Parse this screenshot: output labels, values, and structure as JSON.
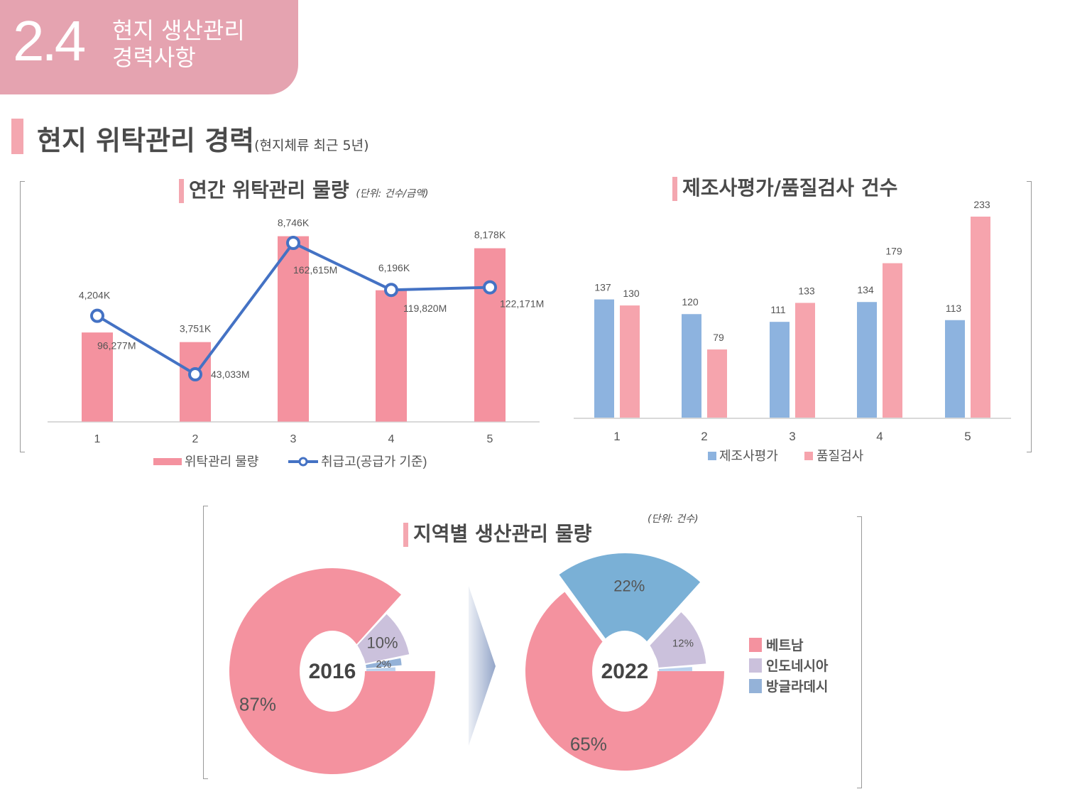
{
  "header": {
    "number": "2.4",
    "title_line1": "현지 생산관리",
    "title_line2": "경력사항"
  },
  "section": {
    "title": "현지 위탁관리 경력",
    "subtitle": "(현지체류 최근 5년)"
  },
  "colors": {
    "pink": "#f4929f",
    "line_blue": "#4472c4",
    "bar_blue": "#8db3df",
    "bar_pink": "#f6a4ad",
    "lavender": "#cbc1dc",
    "mid_blue": "#94b2d8",
    "light_blue": "#b9d0ed",
    "sky_blue": "#7ab0d6"
  },
  "chart_data": [
    {
      "type": "bar",
      "title": "연간 위탁관리 물량",
      "unit": "(단위: 건수/금액)",
      "categories": [
        "1",
        "2",
        "3",
        "4",
        "5"
      ],
      "series": [
        {
          "name": "위탁관리 물량",
          "type": "bar",
          "values": [
            4204,
            3751,
            8746,
            6196,
            8178
          ],
          "labels": [
            "4,204K",
            "3,751K",
            "8,746K",
            "6,196K",
            "8,178K"
          ]
        },
        {
          "name": "취급고(공급가 기준)",
          "type": "line",
          "values": [
            96277,
            43033,
            162615,
            119820,
            122171
          ],
          "labels": [
            "96,277M",
            "43,033M",
            "162,615M",
            "119,820M",
            "122,171M"
          ]
        }
      ],
      "legend": "bottom",
      "grid": false
    },
    {
      "type": "bar",
      "title": "제조사평가/품질검사 건수",
      "categories": [
        "1",
        "2",
        "3",
        "4",
        "5"
      ],
      "series": [
        {
          "name": "제조사평가",
          "values": [
            137,
            120,
            111,
            134,
            113
          ]
        },
        {
          "name": "품질검사",
          "values": [
            130,
            79,
            133,
            179,
            233
          ]
        }
      ],
      "legend": "bottom",
      "grid": false
    },
    {
      "type": "pie",
      "title": "지역별 생산관리 물량",
      "unit": "(단위: 건수)",
      "legend": [
        "베트남",
        "인도네시아",
        "방글라데시"
      ],
      "pies": [
        {
          "label": "2016",
          "slices": [
            {
              "name": "베트남",
              "value": 87,
              "label": "87%"
            },
            {
              "name": "인도네시아",
              "value": 10,
              "label": "10%"
            },
            {
              "name": "방글라데시",
              "value": 2,
              "label": "2%"
            },
            {
              "name": "",
              "value": 1,
              "label": ""
            }
          ]
        },
        {
          "label": "2022",
          "slices": [
            {
              "name": "베트남",
              "value": 65,
              "label": "65%"
            },
            {
              "name": "방글라데시",
              "value": 22,
              "label": "22%"
            },
            {
              "name": "인도네시아",
              "value": 12,
              "label": "12%"
            },
            {
              "name": "",
              "value": 1,
              "label": ""
            }
          ]
        }
      ]
    }
  ]
}
